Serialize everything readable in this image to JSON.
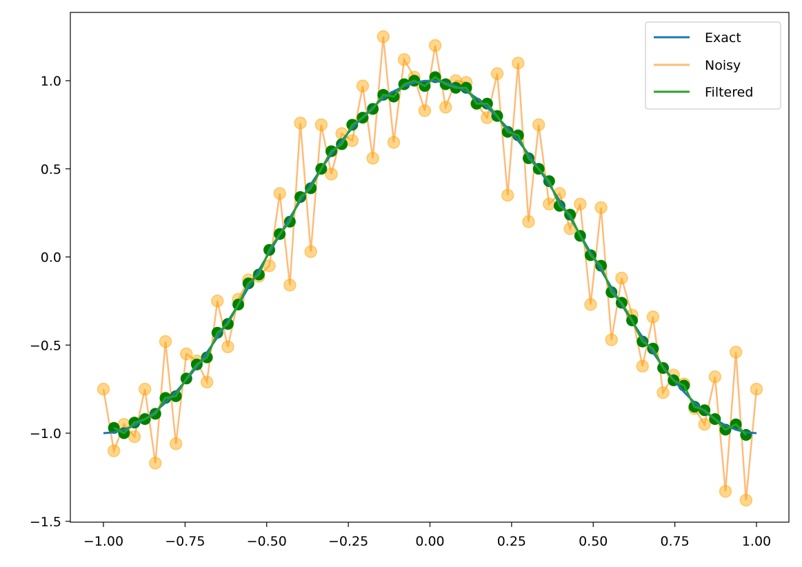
{
  "chart_data": {
    "type": "line",
    "title": "",
    "xlabel": "",
    "ylabel": "",
    "xlim": [
      -1.1,
      1.1
    ],
    "ylim": [
      -1.5,
      1.4
    ],
    "grid": false,
    "legend_position": "top-right",
    "x_ticks": [
      -1.0,
      -0.75,
      -0.5,
      -0.25,
      0.0,
      0.25,
      0.5,
      0.75,
      1.0
    ],
    "x_tick_labels": [
      "−1.00",
      "−0.75",
      "−0.50",
      "−0.25",
      "0.00",
      "0.25",
      "0.50",
      "0.75",
      "1.00"
    ],
    "y_ticks": [
      -1.5,
      -1.0,
      -0.5,
      0.0,
      0.5,
      1.0
    ],
    "y_tick_labels": [
      "−1.5",
      "−1.0",
      "−0.5",
      "0.0",
      "0.5",
      "1.0"
    ],
    "x": [
      -1.0,
      -0.968,
      -0.937,
      -0.905,
      -0.873,
      -0.841,
      -0.81,
      -0.778,
      -0.746,
      -0.714,
      -0.683,
      -0.651,
      -0.619,
      -0.587,
      -0.556,
      -0.524,
      -0.492,
      -0.46,
      -0.429,
      -0.397,
      -0.365,
      -0.333,
      -0.302,
      -0.27,
      -0.238,
      -0.206,
      -0.175,
      -0.143,
      -0.111,
      -0.079,
      -0.048,
      -0.016,
      0.016,
      0.048,
      0.079,
      0.111,
      0.143,
      0.175,
      0.206,
      0.238,
      0.27,
      0.302,
      0.333,
      0.365,
      0.397,
      0.429,
      0.46,
      0.492,
      0.524,
      0.556,
      0.587,
      0.619,
      0.651,
      0.683,
      0.714,
      0.746,
      0.778,
      0.81,
      0.841,
      0.873,
      0.905,
      0.937,
      0.968,
      1.0
    ],
    "series": [
      {
        "name": "Exact",
        "color": "#1f77b4",
        "values": [
          -1.0,
          -0.995,
          -0.98,
          -0.956,
          -0.921,
          -0.878,
          -0.826,
          -0.766,
          -0.698,
          -0.623,
          -0.542,
          -0.456,
          -0.365,
          -0.271,
          -0.174,
          -0.075,
          0.025,
          0.125,
          0.223,
          0.319,
          0.412,
          0.5,
          0.583,
          0.66,
          0.731,
          0.794,
          0.85,
          0.901,
          0.94,
          0.969,
          0.989,
          0.999,
          0.999,
          0.989,
          0.969,
          0.94,
          0.901,
          0.85,
          0.794,
          0.731,
          0.66,
          0.583,
          0.5,
          0.412,
          0.319,
          0.223,
          0.125,
          0.025,
          -0.075,
          -0.174,
          -0.271,
          -0.365,
          -0.456,
          -0.542,
          -0.623,
          -0.698,
          -0.766,
          -0.826,
          -0.878,
          -0.921,
          -0.956,
          -0.98,
          -0.995,
          -1.0
        ]
      },
      {
        "name": "Noisy",
        "color": "#ffbb78",
        "values": [
          -0.75,
          -1.1,
          -0.95,
          -1.02,
          -0.75,
          -1.17,
          -0.48,
          -1.06,
          -0.55,
          -0.59,
          -0.71,
          -0.25,
          -0.51,
          -0.24,
          -0.13,
          -0.11,
          -0.05,
          0.36,
          -0.16,
          0.76,
          0.03,
          0.75,
          0.47,
          0.7,
          0.66,
          0.97,
          0.56,
          1.25,
          0.65,
          1.12,
          1.02,
          0.83,
          1.2,
          0.85,
          1.0,
          0.99,
          0.87,
          0.79,
          1.04,
          0.35,
          1.1,
          0.2,
          0.75,
          0.3,
          0.36,
          0.16,
          0.3,
          -0.27,
          0.28,
          -0.47,
          -0.12,
          -0.33,
          -0.62,
          -0.34,
          -0.77,
          -0.67,
          -0.72,
          -0.86,
          -0.95,
          -0.68,
          -1.33,
          -0.54,
          -1.38,
          -0.75
        ]
      },
      {
        "name": "Filtered",
        "color": "#2ca02c",
        "values": [
          null,
          -0.97,
          -1.0,
          -0.94,
          -0.92,
          -0.89,
          -0.8,
          -0.79,
          -0.69,
          -0.61,
          -0.57,
          -0.43,
          -0.38,
          -0.27,
          -0.15,
          -0.1,
          0.04,
          0.13,
          0.2,
          0.34,
          0.39,
          0.5,
          0.6,
          0.64,
          0.75,
          0.79,
          0.84,
          0.92,
          0.91,
          0.98,
          1.0,
          0.97,
          1.02,
          0.98,
          0.96,
          0.96,
          0.87,
          0.87,
          0.8,
          0.71,
          0.69,
          0.56,
          0.5,
          0.43,
          0.29,
          0.24,
          0.12,
          0.01,
          -0.05,
          -0.2,
          -0.26,
          -0.36,
          -0.48,
          -0.52,
          -0.63,
          -0.7,
          -0.73,
          -0.85,
          -0.87,
          -0.92,
          -0.98,
          -0.95,
          -1.01,
          null
        ]
      }
    ],
    "markers": {
      "noisy_color": "#ffa500",
      "filtered_color": "#008000"
    }
  },
  "legend": {
    "items": [
      "Exact",
      "Noisy",
      "Filtered"
    ]
  }
}
